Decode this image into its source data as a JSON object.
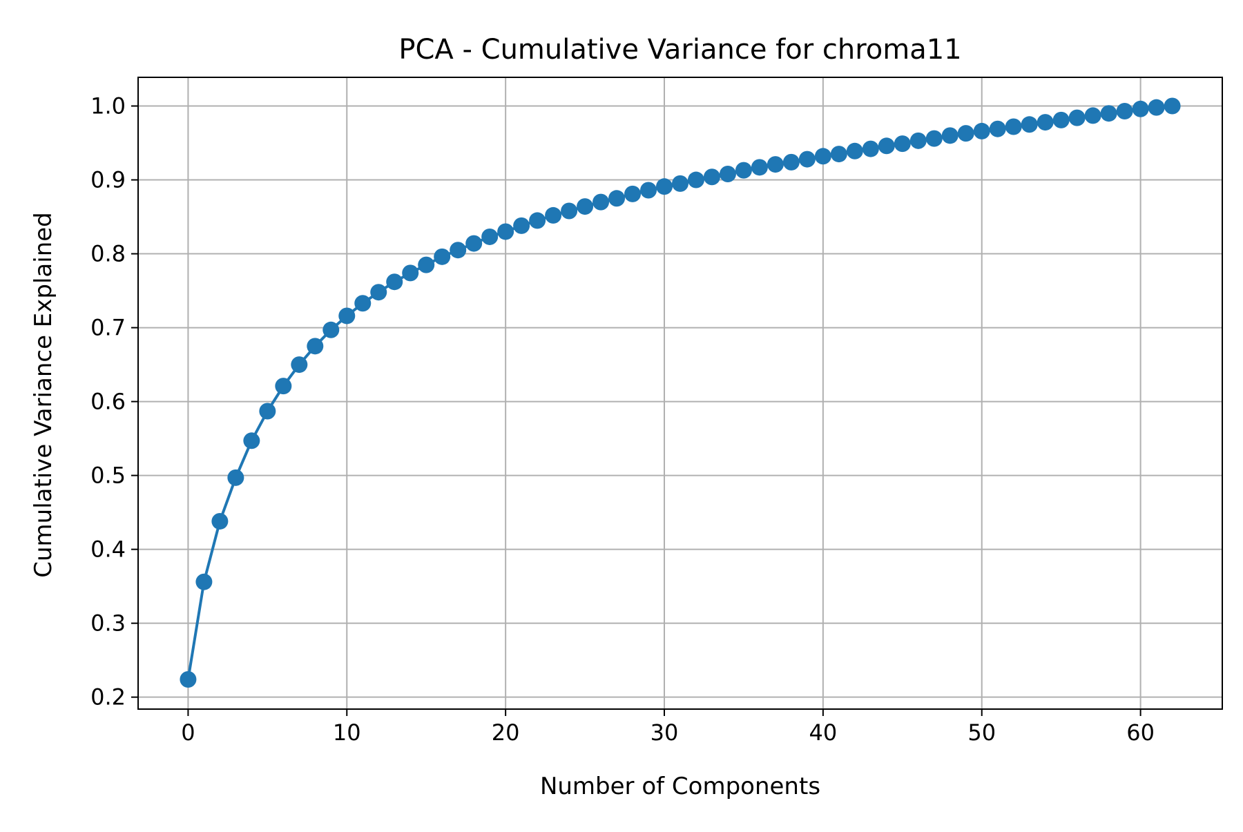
{
  "chart_data": {
    "type": "line",
    "title": "PCA - Cumulative Variance for chroma11",
    "xlabel": "Number of Components",
    "ylabel": "Cumulative Variance Explained",
    "xlim": [
      -3.15,
      65.15
    ],
    "ylim": [
      0.1838,
      1.0388
    ],
    "grid": true,
    "marker": "circle",
    "color": "#1f77b4",
    "x_ticks": [
      0,
      10,
      20,
      30,
      40,
      50,
      60
    ],
    "x_tick_labels": [
      "0",
      "10",
      "20",
      "30",
      "40",
      "50",
      "60"
    ],
    "y_ticks": [
      0.2,
      0.3,
      0.4,
      0.5,
      0.6,
      0.7,
      0.8,
      0.9,
      1.0
    ],
    "y_tick_labels": [
      "0.2",
      "0.3",
      "0.4",
      "0.5",
      "0.6",
      "0.7",
      "0.8",
      "0.9",
      "1.0"
    ],
    "series": [
      {
        "x": [
          0,
          1,
          2,
          3,
          4,
          5,
          6,
          7,
          8,
          9,
          10,
          11,
          12,
          13,
          14,
          15,
          16,
          17,
          18,
          19,
          20,
          21,
          22,
          23,
          24,
          25,
          26,
          27,
          28,
          29,
          30,
          31,
          32,
          33,
          34,
          35,
          36,
          37,
          38,
          39,
          40,
          41,
          42,
          43,
          44,
          45,
          46,
          47,
          48,
          49,
          50,
          51,
          52,
          53,
          54,
          55,
          56,
          57,
          58,
          59,
          60,
          61,
          62
        ],
        "values": [
          0.224,
          0.356,
          0.438,
          0.497,
          0.547,
          0.587,
          0.621,
          0.65,
          0.675,
          0.697,
          0.716,
          0.733,
          0.748,
          0.762,
          0.774,
          0.785,
          0.796,
          0.805,
          0.814,
          0.823,
          0.83,
          0.838,
          0.845,
          0.852,
          0.858,
          0.864,
          0.87,
          0.875,
          0.881,
          0.886,
          0.891,
          0.895,
          0.9,
          0.904,
          0.908,
          0.913,
          0.917,
          0.921,
          0.924,
          0.928,
          0.932,
          0.935,
          0.939,
          0.942,
          0.946,
          0.949,
          0.953,
          0.956,
          0.96,
          0.963,
          0.966,
          0.969,
          0.972,
          0.975,
          0.978,
          0.981,
          0.984,
          0.987,
          0.99,
          0.993,
          0.996,
          0.998,
          1.0
        ]
      }
    ]
  }
}
